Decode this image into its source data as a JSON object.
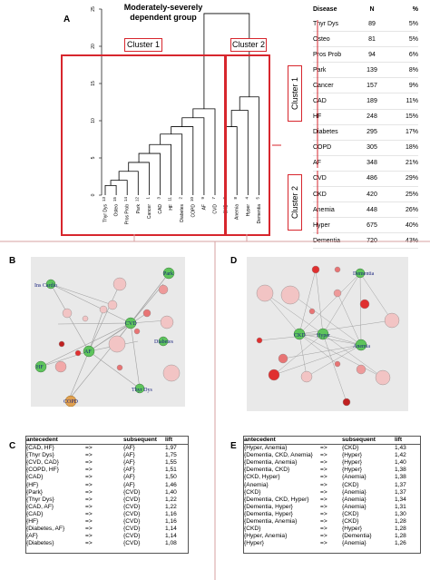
{
  "panels": {
    "A": "A",
    "B": "B",
    "C": "C",
    "D": "D",
    "E": "E"
  },
  "dendrogram": {
    "title_line1": "Moderately-severely",
    "title_line2": "dependent group",
    "cluster1_label": "Cluster 1",
    "cluster2_label": "Cluster 2",
    "y_ticks": [
      "0",
      "5",
      "10",
      "15",
      "20",
      "25"
    ],
    "leaves": [
      "Thyr Dys",
      "Osteo",
      "Pros Prob",
      "Park",
      "Cancer",
      "CAD",
      "HF",
      "Diabetes",
      "COPD",
      "AF",
      "CVD",
      "CKD",
      "Anemia",
      "Hyper",
      "Dementia"
    ],
    "leaf_numbers": [
      "13",
      "15",
      "14",
      "12",
      "1",
      "3",
      "11",
      "2",
      "10",
      "9",
      "7",
      "6",
      "8",
      "4",
      "5"
    ]
  },
  "table": {
    "headers": [
      "Disease",
      "N",
      "%"
    ],
    "rows": [
      [
        "Thyr Dys",
        "89",
        "5%"
      ],
      [
        "Osteo",
        "81",
        "5%"
      ],
      [
        "Pros Prob",
        "94",
        "6%"
      ],
      [
        "Park",
        "139",
        "8%"
      ],
      [
        "Cancer",
        "157",
        "9%"
      ],
      [
        "CAD",
        "189",
        "11%"
      ],
      [
        "HF",
        "248",
        "15%"
      ],
      [
        "Diabetes",
        "295",
        "17%"
      ],
      [
        "COPD",
        "305",
        "18%"
      ],
      [
        "AF",
        "348",
        "21%"
      ],
      [
        "CVD",
        "486",
        "29%"
      ],
      [
        "CKD",
        "420",
        "25%"
      ],
      [
        "Anemia",
        "448",
        "26%"
      ],
      [
        "Hyper",
        "675",
        "40%"
      ],
      [
        "Dementia",
        "720",
        "43%"
      ]
    ],
    "cluster1_side": "Cluster 1",
    "cluster2_side": "Cluster 2"
  },
  "network_b_labels": [
    "Ins Cardio",
    "Park",
    "CVD",
    "Diabetes",
    "AF",
    "HF",
    "Thyr Dys",
    "COPD"
  ],
  "network_d_labels": [
    "Dementia",
    "CKD",
    "Hyper",
    "Anemia"
  ],
  "rules_c": {
    "headers": [
      "antecedent",
      "",
      "subsequent",
      "lift"
    ],
    "rows": [
      [
        "{CAD, HF}",
        "=>",
        "{AF}",
        "1,97"
      ],
      [
        "{Thyr Dys}",
        "=>",
        "{AF}",
        "1,75"
      ],
      [
        "{CVD, CAD}",
        "=>",
        "{AF}",
        "1,55"
      ],
      [
        "{COPD, HF}",
        "=>",
        "{AF}",
        "1,51"
      ],
      [
        "{CAD}",
        "=>",
        "{AF}",
        "1,50"
      ],
      [
        "{HF}",
        "=>",
        "{AF}",
        "1,46"
      ],
      [
        "{Park}",
        "=>",
        "{CVD}",
        "1,40"
      ],
      [
        "{Thyr Dys}",
        "=>",
        "{CVD}",
        "1,22"
      ],
      [
        "{CAD, AF}",
        "=>",
        "{CVD}",
        "1,22"
      ],
      [
        "{CAD}",
        "=>",
        "{CVD}",
        "1,16"
      ],
      [
        "{HF}",
        "=>",
        "{CVD}",
        "1,16"
      ],
      [
        "{Diabetes, AF}",
        "=>",
        "{CVD}",
        "1,14"
      ],
      [
        "{AF}",
        "=>",
        "{CVD}",
        "1,14"
      ],
      [
        "{Diabetes}",
        "=>",
        "{CVD}",
        "1,08"
      ]
    ]
  },
  "rules_e": {
    "headers": [
      "antecedent",
      "",
      "subsequent",
      "lift"
    ],
    "rows": [
      [
        "{Hyper, Anemia}",
        "=>",
        "{CKD}",
        "1,43"
      ],
      [
        "{Dementia, CKD, Anemia}",
        "=>",
        "{Hyper}",
        "1,42"
      ],
      [
        "{Dementia, Anemia}",
        "=>",
        "{Hyper}",
        "1,40"
      ],
      [
        "{Dementia, CKD}",
        "=>",
        "{Hyper}",
        "1,38"
      ],
      [
        "{CKD, Hyper}",
        "=>",
        "{Anemia}",
        "1,38"
      ],
      [
        "{Anemia}",
        "=>",
        "{CKD}",
        "1,37"
      ],
      [
        "{CKD}",
        "=>",
        "{Anemia}",
        "1,37"
      ],
      [
        "{Dementia, CKD, Hyper}",
        "=>",
        "{Anemia}",
        "1,34"
      ],
      [
        "{Dementia, Hyper}",
        "=>",
        "{Anemia}",
        "1,31"
      ],
      [
        "{Dementia, Hyper}",
        "=>",
        "{CKD}",
        "1,30"
      ],
      [
        "{Dementia, Anemia}",
        "=>",
        "{CKD}",
        "1,28"
      ],
      [
        "{CKD}",
        "=>",
        "{Hyper}",
        "1,28"
      ],
      [
        "{Hyper, Anemia}",
        "=>",
        "{Dementia}",
        "1,28"
      ],
      [
        "{Hyper}",
        "=>",
        "{Anemia}",
        "1,26"
      ]
    ]
  },
  "colors": {
    "accent": "#d7262d",
    "node_green": "#5ec45c",
    "edge": "#9a9a9a"
  }
}
